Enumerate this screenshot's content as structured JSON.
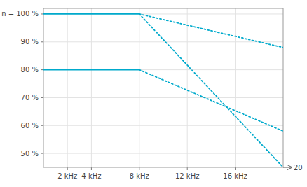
{
  "chart_data": {
    "type": "line",
    "color": "#00aacc",
    "xlim": [
      0,
      20000
    ],
    "ylim": [
      45,
      102
    ],
    "xticks": [
      {
        "value": 2000,
        "label": "2 kHz"
      },
      {
        "value": 4000,
        "label": "4 kHz"
      },
      {
        "value": 8000,
        "label": "8 kHz"
      },
      {
        "value": 12000,
        "label": "12 kHz"
      },
      {
        "value": 16000,
        "label": "16 kHz"
      }
    ],
    "yticks": [
      {
        "value": 100,
        "label": "n = 100 %"
      },
      {
        "value": 90,
        "label": "90 %"
      },
      {
        "value": 80,
        "label": "80 %"
      },
      {
        "value": 70,
        "label": "70 %"
      },
      {
        "value": 60,
        "label": "60 %"
      },
      {
        "value": 50,
        "label": "50 %"
      }
    ],
    "grid": true,
    "series": [
      {
        "x": [
          0,
          8000
        ],
        "values": [
          100,
          100
        ],
        "line_style": "solid"
      },
      {
        "x": [
          0,
          8000
        ],
        "values": [
          80,
          80
        ],
        "line_style": "solid"
      },
      {
        "x": [
          8000,
          20000
        ],
        "values": [
          100,
          88
        ],
        "line_style": "dotted"
      },
      {
        "x": [
          8000,
          20000
        ],
        "values": [
          80,
          58
        ],
        "line_style": "dotted"
      },
      {
        "x": [
          8000,
          20000
        ],
        "values": [
          100,
          45
        ],
        "line_style": "dotted"
      }
    ],
    "annotations": [
      {
        "text": "20"
      }
    ]
  }
}
